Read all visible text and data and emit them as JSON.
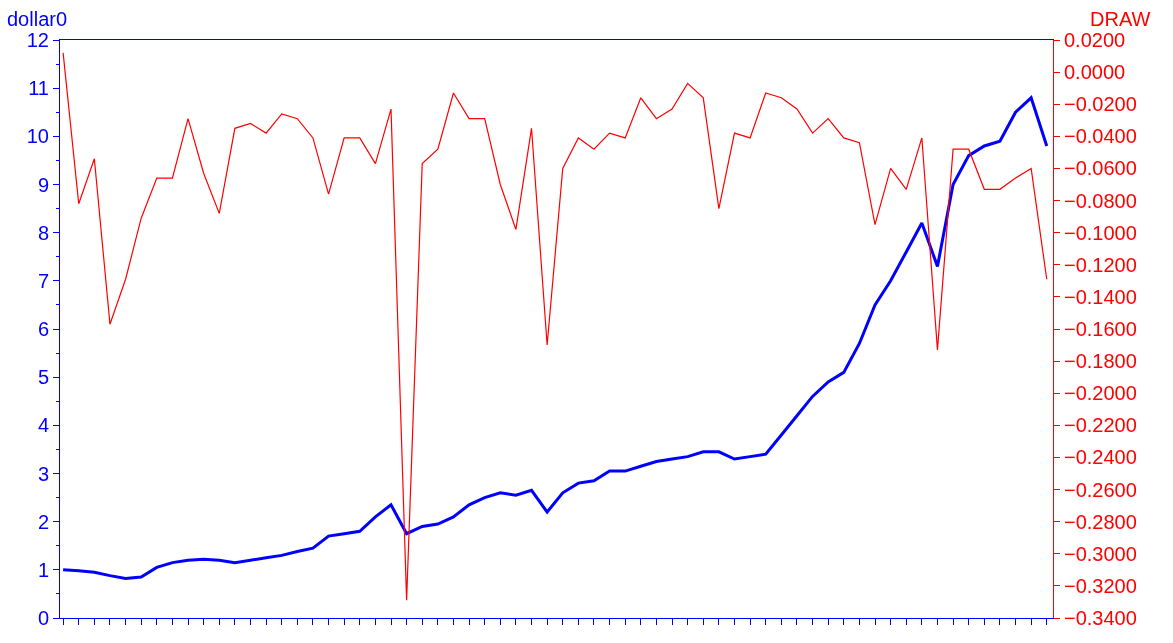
{
  "chart_data": {
    "type": "line",
    "xlabel": null,
    "ylabel": "dollar0",
    "y2label": "DRAW",
    "categories": [
      null,
      null,
      null,
      null,
      null,
      null,
      null,
      null,
      null,
      null,
      null,
      null,
      null,
      null,
      null,
      null,
      null,
      null,
      null,
      null,
      null,
      null,
      null,
      null,
      null,
      null,
      null,
      null,
      null,
      null,
      null,
      null,
      null,
      null,
      null,
      null,
      null,
      null,
      null,
      null,
      null,
      null,
      null,
      null,
      null,
      null,
      null,
      null,
      null,
      null,
      null,
      null,
      null,
      null,
      null,
      null,
      null,
      null,
      null,
      null,
      null,
      null,
      null,
      null
    ],
    "series": [
      {
        "color": "#0000ff",
        "values": [
          1.0,
          0.98,
          0.95,
          0.88,
          0.82,
          0.85,
          1.05,
          1.15,
          1.2,
          1.22,
          1.2,
          1.15,
          1.2,
          1.25,
          1.3,
          1.38,
          1.45,
          1.7,
          1.75,
          1.8,
          2.1,
          2.35,
          1.75,
          1.9,
          1.95,
          2.1,
          2.35,
          2.5,
          2.6,
          2.55,
          2.65,
          2.2,
          2.6,
          2.8,
          2.85,
          3.05,
          3.05,
          3.15,
          3.25,
          3.3,
          3.35,
          3.45,
          3.45,
          3.3,
          3.35,
          3.4,
          3.8,
          4.2,
          4.6,
          4.9,
          5.1,
          5.7,
          6.5,
          7.0,
          7.6,
          8.2,
          7.3,
          9.0,
          9.6,
          9.8,
          9.9,
          10.5,
          10.8,
          9.8
        ]
      },
      {
        "color": "#ff0000",
        "axis": "y2",
        "values": [
          0.012,
          -0.082,
          -0.054,
          -0.157,
          -0.129,
          -0.091,
          -0.066,
          -0.066,
          -0.029,
          -0.063,
          -0.088,
          -0.035,
          -0.032,
          -0.038,
          -0.026,
          -0.029,
          -0.041,
          -0.076,
          -0.041,
          -0.041,
          -0.057,
          -0.023,
          -0.329,
          -0.057,
          -0.048,
          -0.013,
          -0.029,
          -0.029,
          -0.07,
          -0.098,
          -0.035,
          -0.17,
          -0.06,
          -0.041,
          -0.048,
          -0.038,
          -0.041,
          -0.016,
          -0.029,
          -0.023,
          -0.007,
          -0.016,
          -0.085,
          -0.038,
          -0.041,
          -0.013,
          -0.016,
          -0.023,
          -0.038,
          -0.029,
          -0.041,
          -0.044,
          -0.095,
          -0.06,
          -0.073,
          -0.041,
          -0.173,
          -0.048,
          -0.048,
          -0.073,
          -0.073,
          -0.066,
          -0.06,
          -0.129
        ]
      }
    ],
    "ylim": [
      0,
      12
    ],
    "yticks": [
      0,
      1,
      2,
      3,
      4,
      5,
      6,
      7,
      8,
      9,
      10,
      11,
      12
    ],
    "y2lim": [
      -0.34,
      0.02
    ],
    "y2ticks": [
      {
        "value": 0.02,
        "label": "0.0200"
      },
      {
        "value": 0.0,
        "label": "0.0000"
      },
      {
        "value": -0.02,
        "label": "−0.0200"
      },
      {
        "value": -0.04,
        "label": "−0.0400"
      },
      {
        "value": -0.06,
        "label": "−0.0600"
      },
      {
        "value": -0.08,
        "label": "−0.0800"
      },
      {
        "value": -0.1,
        "label": "−0.1000"
      },
      {
        "value": -0.12,
        "label": "−0.1200"
      },
      {
        "value": -0.14,
        "label": "−0.1400"
      },
      {
        "value": -0.16,
        "label": "−0.1600"
      },
      {
        "value": -0.18,
        "label": "−0.1800"
      },
      {
        "value": -0.2,
        "label": "−0.2000"
      },
      {
        "value": -0.22,
        "label": "−0.2200"
      },
      {
        "value": -0.24,
        "label": "−0.2400"
      },
      {
        "value": -0.26,
        "label": "−0.2600"
      },
      {
        "value": -0.28,
        "label": "−0.2800"
      },
      {
        "value": -0.3,
        "label": "−0.3000"
      },
      {
        "value": -0.32,
        "label": "−0.3200"
      },
      {
        "value": -0.34,
        "label": "−0.3400"
      }
    ],
    "tick_labels": "y",
    "marker": "none",
    "line_style": "solid"
  }
}
